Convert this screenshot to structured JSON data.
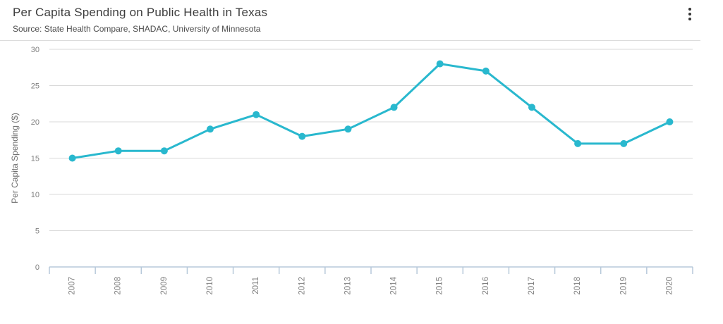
{
  "header": {
    "title": "Per Capita Spending on Public Health in Texas",
    "subtitle": "Source: State Health Compare, SHADAC, University of Minnesota",
    "menu_icon": "kebab-menu"
  },
  "chart_data": {
    "type": "line",
    "title": "Per Capita Spending on Public Health in Texas",
    "categories": [
      "2007",
      "2008",
      "2009",
      "2010",
      "2011",
      "2012",
      "2013",
      "2014",
      "2015",
      "2016",
      "2017",
      "2018",
      "2019",
      "2020"
    ],
    "values": [
      15,
      16,
      16,
      19,
      21,
      18,
      19,
      22,
      28,
      27,
      22,
      17,
      17,
      20
    ],
    "xlabel": "",
    "ylabel": "Per Capita Spending ($)",
    "ylim": [
      0,
      30
    ],
    "yticks": [
      0,
      5,
      10,
      15,
      20,
      25,
      30
    ],
    "grid": true,
    "legend": "none",
    "marker": "circle"
  },
  "style": {
    "series_color": "#29b8ce",
    "gridline_color": "#d9d9d9",
    "axis_line_color": "#b7c9da",
    "tick_label_color": "#808080",
    "axis_title_color": "#6e6e6e",
    "title_color": "#3d3d3d",
    "subtitle_color": "#4c4c4c"
  }
}
